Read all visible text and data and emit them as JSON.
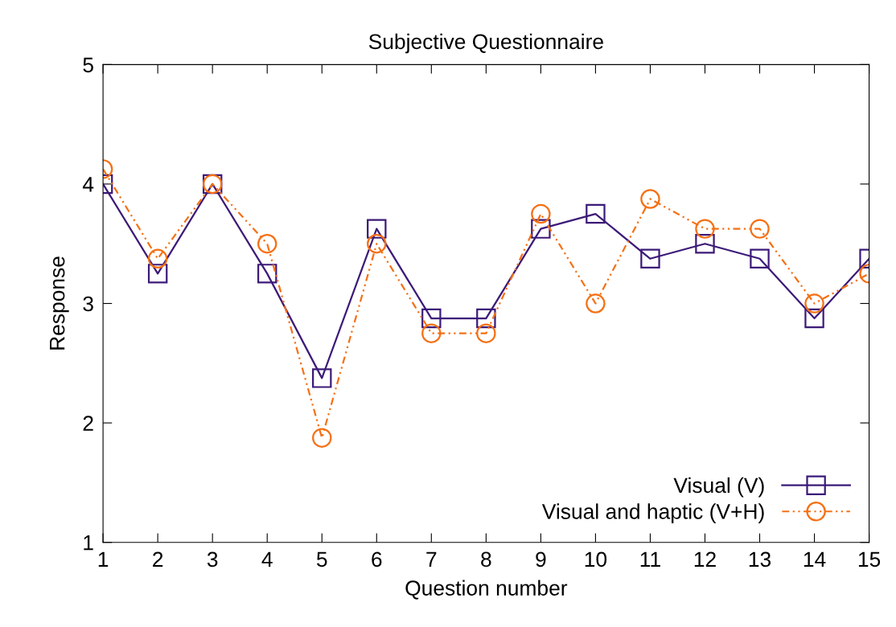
{
  "chart_data": {
    "type": "line",
    "title": "Subjective Questionnaire",
    "xlabel": "Question number",
    "ylabel": "Response",
    "x": [
      1,
      2,
      3,
      4,
      5,
      6,
      7,
      8,
      9,
      10,
      11,
      12,
      13,
      14,
      15
    ],
    "xlim": [
      1,
      15
    ],
    "xticks": [
      1,
      2,
      3,
      4,
      5,
      6,
      7,
      8,
      9,
      10,
      11,
      12,
      13,
      14,
      15
    ],
    "ylim": [
      1,
      5
    ],
    "yticks": [
      1,
      2,
      3,
      4,
      5
    ],
    "grid": false,
    "legend": "bottom right",
    "series": [
      {
        "name": "Visual (V)",
        "color": "#3c1a78",
        "marker": "square",
        "line_style": "solid",
        "values": [
          4,
          3.25,
          4,
          3.25,
          2.375,
          3.625,
          2.875,
          2.875,
          3.625,
          3.75,
          3.375,
          3.5,
          3.375,
          2.875,
          3.375
        ]
      },
      {
        "name": "Visual and haptic (V+H)",
        "color": "#f57014",
        "marker": "circle",
        "line_style": "dashed",
        "values": [
          4.125,
          3.375,
          4,
          3.5,
          1.875,
          3.5,
          2.75,
          2.75,
          3.75,
          3.0,
          3.875,
          3.625,
          3.625,
          3.0,
          3.25
        ]
      }
    ]
  }
}
